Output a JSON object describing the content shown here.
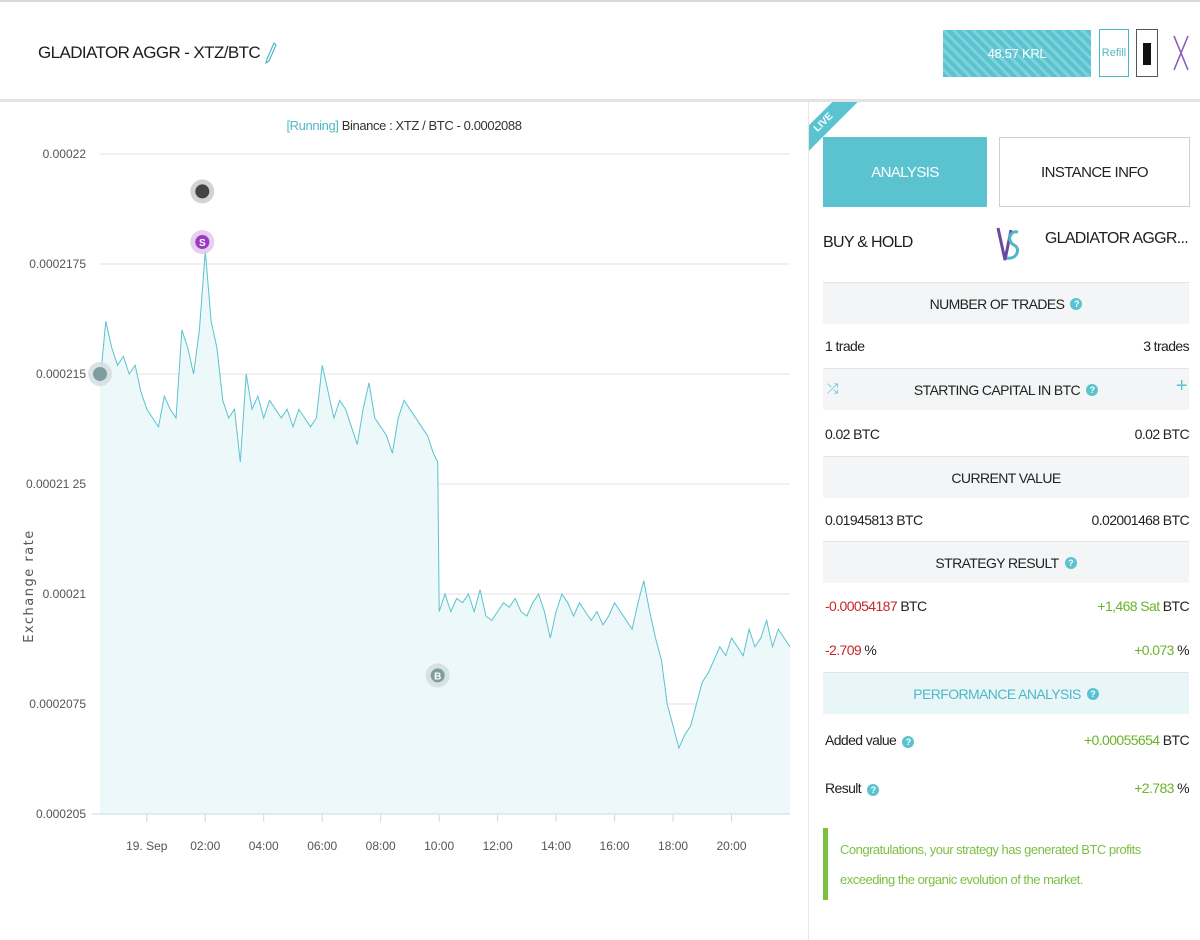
{
  "header": {
    "title": "GLADIATOR AGGR - XTZ/BTC",
    "balance": "48.57 KRL",
    "refill_label": "Refill",
    "icons": [
      "pencil-icon",
      "mobile-icon",
      "close-icon"
    ]
  },
  "chart": {
    "status": "[Running]",
    "market": " Binance : XTZ / BTC - 0.0002088"
  },
  "chart_data": {
    "type": "area",
    "title": "[Running] Binance : XTZ / BTC - 0.0002088",
    "ylabel": "Exchange rate",
    "xlabel": "",
    "ylim": [
      0.000205,
      0.00022
    ],
    "yticks": [
      "0.00022",
      "0.0002175",
      "0.000215",
      "0.00021250",
      "0.00021",
      "0.0002075",
      "0.000205"
    ],
    "ytick_labels": [
      "0.00022",
      "0.0002175",
      "0.000215",
      "0.00021 25",
      "0.00021",
      "0.0002075",
      "0.000205"
    ],
    "xtick_labels": [
      "19. Sep",
      "02:00",
      "04:00",
      "06:00",
      "08:00",
      "10:00",
      "12:00",
      "14:00",
      "16:00",
      "18:00",
      "20:00"
    ],
    "xtick_hours": [
      0,
      2,
      4,
      6,
      8,
      10,
      12,
      14,
      16,
      18,
      20
    ],
    "x_hours": [
      -1.6,
      -1.4,
      -1.2,
      -1.0,
      -0.8,
      -0.6,
      -0.4,
      -0.2,
      0.0,
      0.2,
      0.4,
      0.6,
      0.8,
      1.0,
      1.2,
      1.4,
      1.6,
      1.8,
      2.0,
      2.2,
      2.4,
      2.6,
      2.8,
      3.0,
      3.2,
      3.4,
      3.6,
      3.8,
      4.0,
      4.2,
      4.4,
      4.6,
      4.8,
      5.0,
      5.2,
      5.4,
      5.6,
      5.8,
      6.0,
      6.2,
      6.4,
      6.6,
      6.8,
      7.0,
      7.2,
      7.4,
      7.6,
      7.8,
      8.0,
      8.2,
      8.4,
      8.6,
      8.8,
      9.0,
      9.2,
      9.4,
      9.6,
      9.8,
      9.95,
      10.0,
      10.2,
      10.4,
      10.6,
      10.8,
      11.0,
      11.2,
      11.4,
      11.6,
      11.8,
      12.0,
      12.2,
      12.4,
      12.6,
      12.8,
      13.0,
      13.2,
      13.4,
      13.6,
      13.8,
      14.0,
      14.2,
      14.4,
      14.6,
      14.8,
      15.0,
      15.2,
      15.4,
      15.6,
      15.8,
      16.0,
      16.2,
      16.4,
      16.6,
      16.8,
      17.0,
      17.2,
      17.4,
      17.6,
      17.8,
      18.0,
      18.2,
      18.4,
      18.6,
      18.8,
      19.0,
      19.2,
      19.4,
      19.6,
      19.8,
      20.0,
      20.2,
      20.4,
      20.6,
      20.8,
      21.0,
      21.2,
      21.4,
      21.6,
      21.8,
      22.0
    ],
    "series": [
      {
        "values": [
          0.0002148,
          0.0002162,
          0.0002156,
          0.0002152,
          0.0002154,
          0.000215,
          0.0002152,
          0.0002146,
          0.0002142,
          0.000214,
          0.0002138,
          0.0002145,
          0.0002142,
          0.000214,
          0.000216,
          0.0002156,
          0.000215,
          0.000216,
          0.0002178,
          0.0002162,
          0.0002156,
          0.0002144,
          0.000214,
          0.0002142,
          0.000213,
          0.000215,
          0.0002142,
          0.0002145,
          0.000214,
          0.0002144,
          0.0002142,
          0.000214,
          0.0002142,
          0.0002138,
          0.0002142,
          0.000214,
          0.0002138,
          0.000214,
          0.0002152,
          0.0002146,
          0.000214,
          0.0002144,
          0.0002142,
          0.0002138,
          0.0002134,
          0.0002142,
          0.0002148,
          0.000214,
          0.0002138,
          0.0002136,
          0.0002132,
          0.000214,
          0.0002144,
          0.0002142,
          0.000214,
          0.0002138,
          0.0002136,
          0.0002132,
          0.000213,
          0.0002096,
          0.00021,
          0.0002096,
          0.0002099,
          0.0002098,
          0.00021,
          0.0002096,
          0.0002101,
          0.0002095,
          0.0002094,
          0.0002096,
          0.0002098,
          0.0002097,
          0.0002099,
          0.0002096,
          0.0002095,
          0.0002098,
          0.00021,
          0.0002096,
          0.000209,
          0.0002096,
          0.00021,
          0.0002098,
          0.0002095,
          0.0002098,
          0.0002096,
          0.0002094,
          0.0002096,
          0.0002093,
          0.0002095,
          0.0002098,
          0.0002096,
          0.0002094,
          0.0002092,
          0.0002098,
          0.0002103,
          0.0002096,
          0.000209,
          0.0002085,
          0.0002075,
          0.000207,
          0.0002065,
          0.0002068,
          0.000207,
          0.0002075,
          0.000208,
          0.0002082,
          0.0002085,
          0.0002088,
          0.0002086,
          0.000209,
          0.0002088,
          0.0002086,
          0.0002092,
          0.0002088,
          0.000209,
          0.0002094,
          0.0002088,
          0.0002092,
          0.000209,
          0.0002088
        ]
      }
    ],
    "markers": [
      {
        "x_hour": -1.6,
        "y": 0.000215,
        "kind": "buy-hold-marker"
      },
      {
        "x_hour": 1.9,
        "y": 0.00021915,
        "kind": "dark-marker"
      },
      {
        "x_hour": 1.9,
        "y": 0.000218,
        "kind": "sell-marker",
        "label": "S"
      },
      {
        "x_hour": 9.95,
        "y": 0.00020815,
        "kind": "buy-marker",
        "label": "B"
      }
    ],
    "grid": true,
    "legend": "none"
  },
  "panel": {
    "live_label": "LIVE",
    "tabs": [
      {
        "label": "ANALYSIS",
        "active": true
      },
      {
        "label": "INSTANCE INFO",
        "active": false
      }
    ],
    "left_label": "BUY & HOLD",
    "right_label": "GLADIATOR AGGR...",
    "vs_icon": "vs-icon",
    "trades": {
      "header": "NUMBER OF TRADES",
      "left": "1 trade",
      "right": "3 trades"
    },
    "capital": {
      "header": "STARTING CAPITAL IN BTC",
      "left": "0.02 BTC",
      "right": "0.02 BTC"
    },
    "current": {
      "header": "CURRENT VALUE",
      "left": "0.01945813 BTC",
      "right": "0.02001468 BTC"
    },
    "result": {
      "header": "STRATEGY RESULT",
      "left_btc_value": "-0.00054187",
      "left_btc_unit": " BTC",
      "right_btc_value": "+1,468 Sat",
      "right_btc_unit": " BTC",
      "left_pct_value": "-2.709",
      "left_pct_unit": " %",
      "right_pct_value": "+0.073",
      "right_pct_unit": " %"
    },
    "performance": {
      "header": "PERFORMANCE ANALYSIS",
      "added_label": "Added value",
      "added_value": "+0.00055654",
      "added_unit": " BTC",
      "result_label": "Result",
      "result_value": "+2.783",
      "result_unit": " %"
    },
    "congrats": "Congratulations, your strategy has generated BTC profits exceeding the organic evolution of the market.",
    "help_symbol": "?",
    "shuffle_symbol": "⤮",
    "plus_symbol": "+"
  },
  "colors": {
    "accent": "#5ac3cf",
    "negative": "#c62828",
    "positive": "#6ab42a",
    "line": "#5ac3cf",
    "area": "#ecf8f9"
  }
}
